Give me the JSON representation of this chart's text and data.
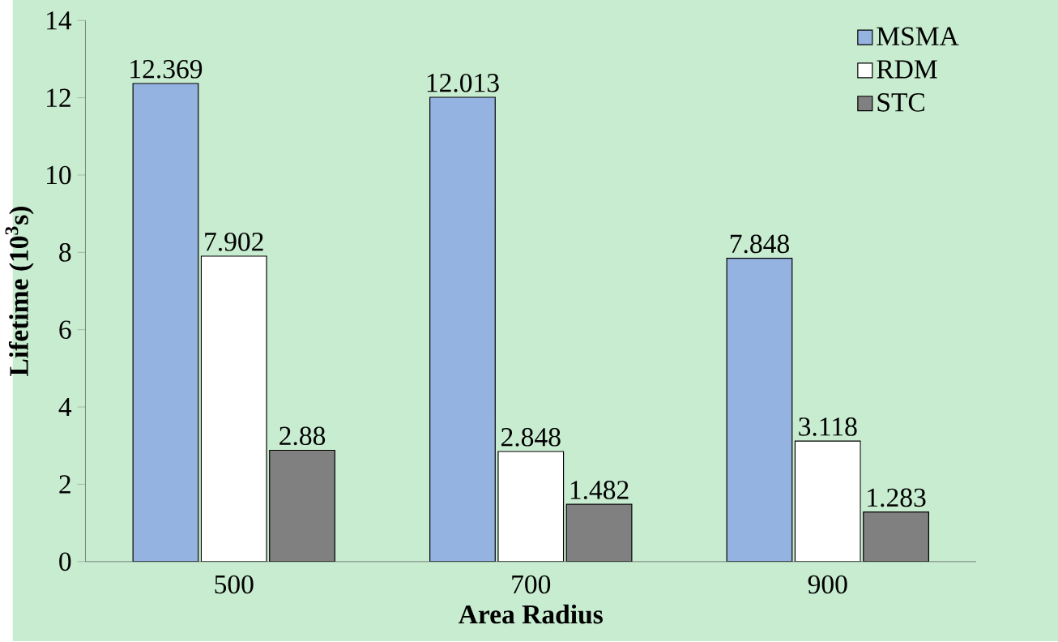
{
  "chart_data": {
    "type": "bar",
    "xlabel": "Area Radius",
    "ylabel": "Lifetime (10$^{3}$s)",
    "categories": [
      "500",
      "700",
      "900"
    ],
    "series": [
      {
        "name": "MSMA",
        "color": "#95b3e0",
        "values": [
          12.369,
          12.013,
          7.848
        ],
        "value_labels": [
          "12.369",
          "12.013",
          "7.848"
        ]
      },
      {
        "name": "RDM",
        "color": "#ffffff",
        "values": [
          7.902,
          2.848,
          3.118
        ],
        "value_labels": [
          "7.902",
          "2.848",
          "3.118"
        ]
      },
      {
        "name": "STC",
        "color": "#808080",
        "values": [
          2.88,
          1.482,
          1.283
        ],
        "value_labels": [
          "2.88",
          "1.482",
          "1.283"
        ]
      }
    ],
    "ylim": [
      0,
      14
    ],
    "yticks": [
      0,
      2,
      4,
      6,
      8,
      10,
      12,
      14
    ],
    "legend": "top right",
    "grid": false
  }
}
